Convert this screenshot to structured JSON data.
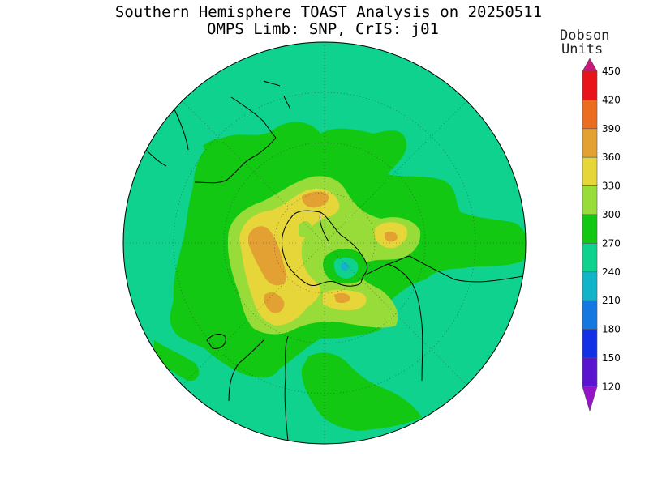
{
  "title_line1": "Southern Hemisphere TOAST Analysis on 20250511",
  "title_line2": "OMPS Limb: SNP, CrIS: j01",
  "units_line1": "Dobson",
  "units_line2": "Units",
  "colorbar": {
    "labels": [
      "450",
      "420",
      "390",
      "360",
      "330",
      "300",
      "270",
      "240",
      "210",
      "180",
      "150",
      "120"
    ],
    "colors": [
      "#c8187a",
      "#e8141a",
      "#ec6c20",
      "#e3a033",
      "#e6d63a",
      "#98dc3a",
      "#12c812",
      "#0fd28e",
      "#11b4c8",
      "#1478e0",
      "#1430e6",
      "#5a14d0",
      "#9414c8"
    ],
    "color_names": [
      "magenta",
      "red",
      "orange",
      "dark-yellow",
      "yellow",
      "light-green",
      "green",
      "teal-green",
      "cyan",
      "light-blue",
      "blue",
      "indigo",
      "violet"
    ]
  },
  "map": {
    "projection": "south polar stereographic",
    "background_level": "240-270",
    "background_color": "#0fd28e",
    "maximum_region_level": "360-390",
    "minimum_region_level": "210-240"
  }
}
